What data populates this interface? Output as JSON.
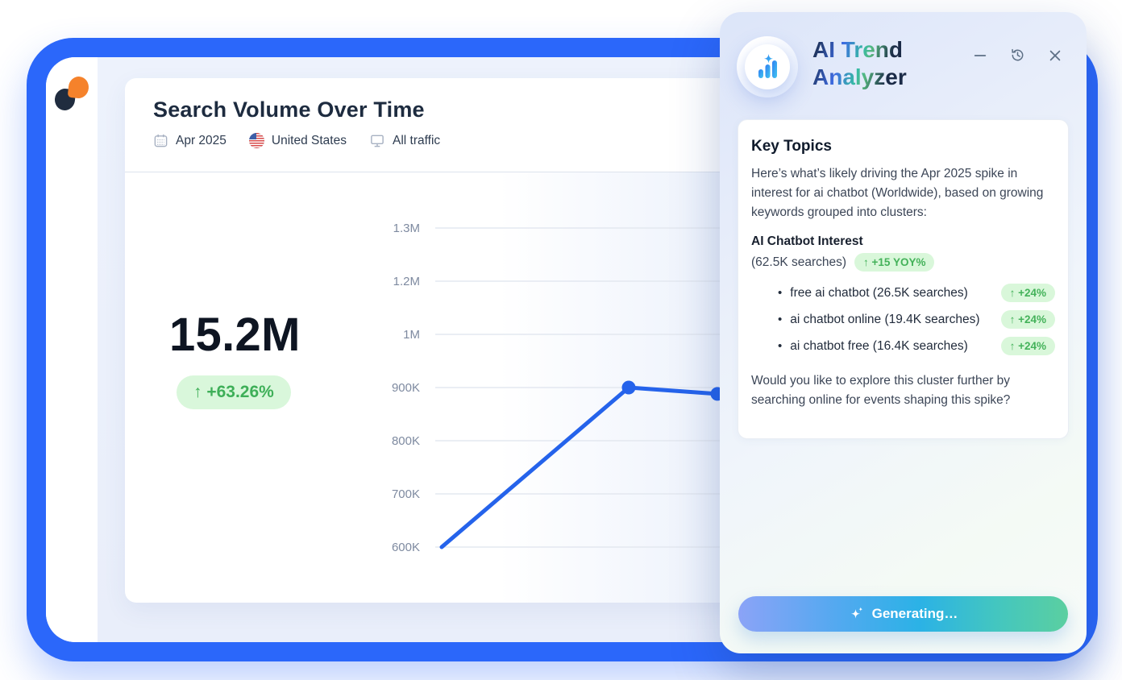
{
  "report": {
    "title": "Search Volume Over Time",
    "filters": [
      {
        "icon": "calendar-icon",
        "label": "Apr 2025"
      },
      {
        "icon": "us-flag-icon",
        "label": "United States"
      },
      {
        "icon": "monitor-icon",
        "label": "All traffic"
      }
    ],
    "metric": {
      "value": "15.2M",
      "change_badge": "↑ +63.26%"
    }
  },
  "chart_data": {
    "type": "line",
    "title": "Search Volume Over Time",
    "y_ticks": [
      "1.3M",
      "1.2M",
      "1M",
      "900K",
      "800K",
      "700K",
      "600K"
    ],
    "y_tick_values": [
      1300000,
      1200000,
      1000000,
      900000,
      800000,
      700000,
      600000
    ],
    "series": [
      {
        "name": "Search volume",
        "values": [
          600000,
          900000,
          888000
        ],
        "markers": [
          false,
          true,
          true
        ]
      }
    ],
    "headline_value": "15.2M",
    "headline_change_pct": 63.26,
    "line_color": "#2563EB",
    "grid": true,
    "x_axis_labels_visible": false,
    "legend": "none"
  },
  "assistant_panel": {
    "title_line1": "AI Trend",
    "title_line2": "Analyzer",
    "controls": [
      "minimize",
      "history",
      "close"
    ],
    "card": {
      "heading": "Key Topics",
      "intro": "Here’s what’s likely driving the Apr 2025 spike in interest for ai chatbot (Worldwide), based on growing keywords grouped into clusters:",
      "cluster_name": "AI Chatbot Interest",
      "cluster_searches": "(62.5K searches)",
      "cluster_badge": "↑ +15 YOY%",
      "keywords": [
        {
          "label": "free ai chatbot (26.5K searches)",
          "badge": "↑ +24%"
        },
        {
          "label": "ai chatbot online (19.4K searches)",
          "badge": "↑ +24%"
        },
        {
          "label": "ai chatbot free (16.4K searches)",
          "badge": "↑ +24%"
        }
      ],
      "outro": "Would you like to explore this cluster further by searching online for events shaping this spike?"
    },
    "action_button": {
      "label": "Generating…"
    }
  },
  "colors": {
    "frame_blue": "#2B67FA",
    "line_blue": "#2563EB",
    "badge_green_bg": "#D9F7DA",
    "badge_green_text": "#44B25A",
    "button_gradient": [
      "#8BA3F7",
      "#2BB2E6",
      "#5BCFA0"
    ]
  }
}
